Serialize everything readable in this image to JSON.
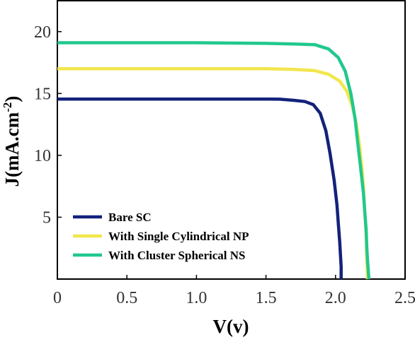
{
  "chart_data": {
    "type": "line",
    "title": "",
    "xlabel": "V(v)",
    "ylabel_main": "J(mA.cm",
    "ylabel_sup": "-2",
    "ylabel_close": ")",
    "xlim": [
      0,
      2.5
    ],
    "ylim": [
      0,
      22.5
    ],
    "xticks": [
      0,
      0.5,
      1.0,
      1.5,
      2.0,
      2.5
    ],
    "xtick_labels": [
      "0",
      "0.5",
      "1.0",
      "1.5",
      "2.0",
      "2.5"
    ],
    "yticks": [
      5,
      10,
      15,
      20
    ],
    "ytick_labels": [
      "5",
      "10",
      "15",
      "20"
    ],
    "grid": false,
    "legend_position": "bottom-left",
    "series": [
      {
        "name": "Bare SC",
        "color": "#13227a",
        "x": [
          0,
          0.5,
          1.0,
          1.5,
          1.6,
          1.7,
          1.78,
          1.84,
          1.89,
          1.93,
          1.96,
          1.99,
          2.01,
          2.02,
          2.03,
          2.035,
          2.04,
          2.04
        ],
        "y": [
          14.55,
          14.55,
          14.55,
          14.55,
          14.54,
          14.45,
          14.35,
          14.1,
          13.4,
          12.0,
          10.2,
          8.0,
          6.0,
          4.5,
          3.0,
          2.0,
          1.0,
          0
        ]
      },
      {
        "name": "With Single Cylindrical NP",
        "color": "#f2e64e",
        "x": [
          0,
          0.5,
          1.0,
          1.5,
          1.7,
          1.85,
          1.95,
          2.03,
          2.08,
          2.12,
          2.15,
          2.17,
          2.19,
          2.2,
          2.21,
          2.22,
          2.225,
          2.23
        ],
        "y": [
          17.0,
          17.0,
          17.0,
          17.0,
          16.95,
          16.85,
          16.55,
          16.0,
          15.2,
          14.0,
          12.5,
          11.0,
          9.0,
          7.5,
          5.5,
          3.5,
          1.5,
          0
        ]
      },
      {
        "name": "With Cluster Spherical NS",
        "color": "#21c88d",
        "x": [
          0,
          0.5,
          1.0,
          1.5,
          1.7,
          1.85,
          1.95,
          2.02,
          2.07,
          2.11,
          2.14,
          2.16,
          2.18,
          2.2,
          2.21,
          2.22,
          2.225,
          2.23,
          2.24
        ],
        "y": [
          19.1,
          19.1,
          19.1,
          19.05,
          19.0,
          18.95,
          18.6,
          17.9,
          16.8,
          15.0,
          13.0,
          11.0,
          9.0,
          7.0,
          5.5,
          4.0,
          2.5,
          1.5,
          0
        ]
      }
    ]
  }
}
